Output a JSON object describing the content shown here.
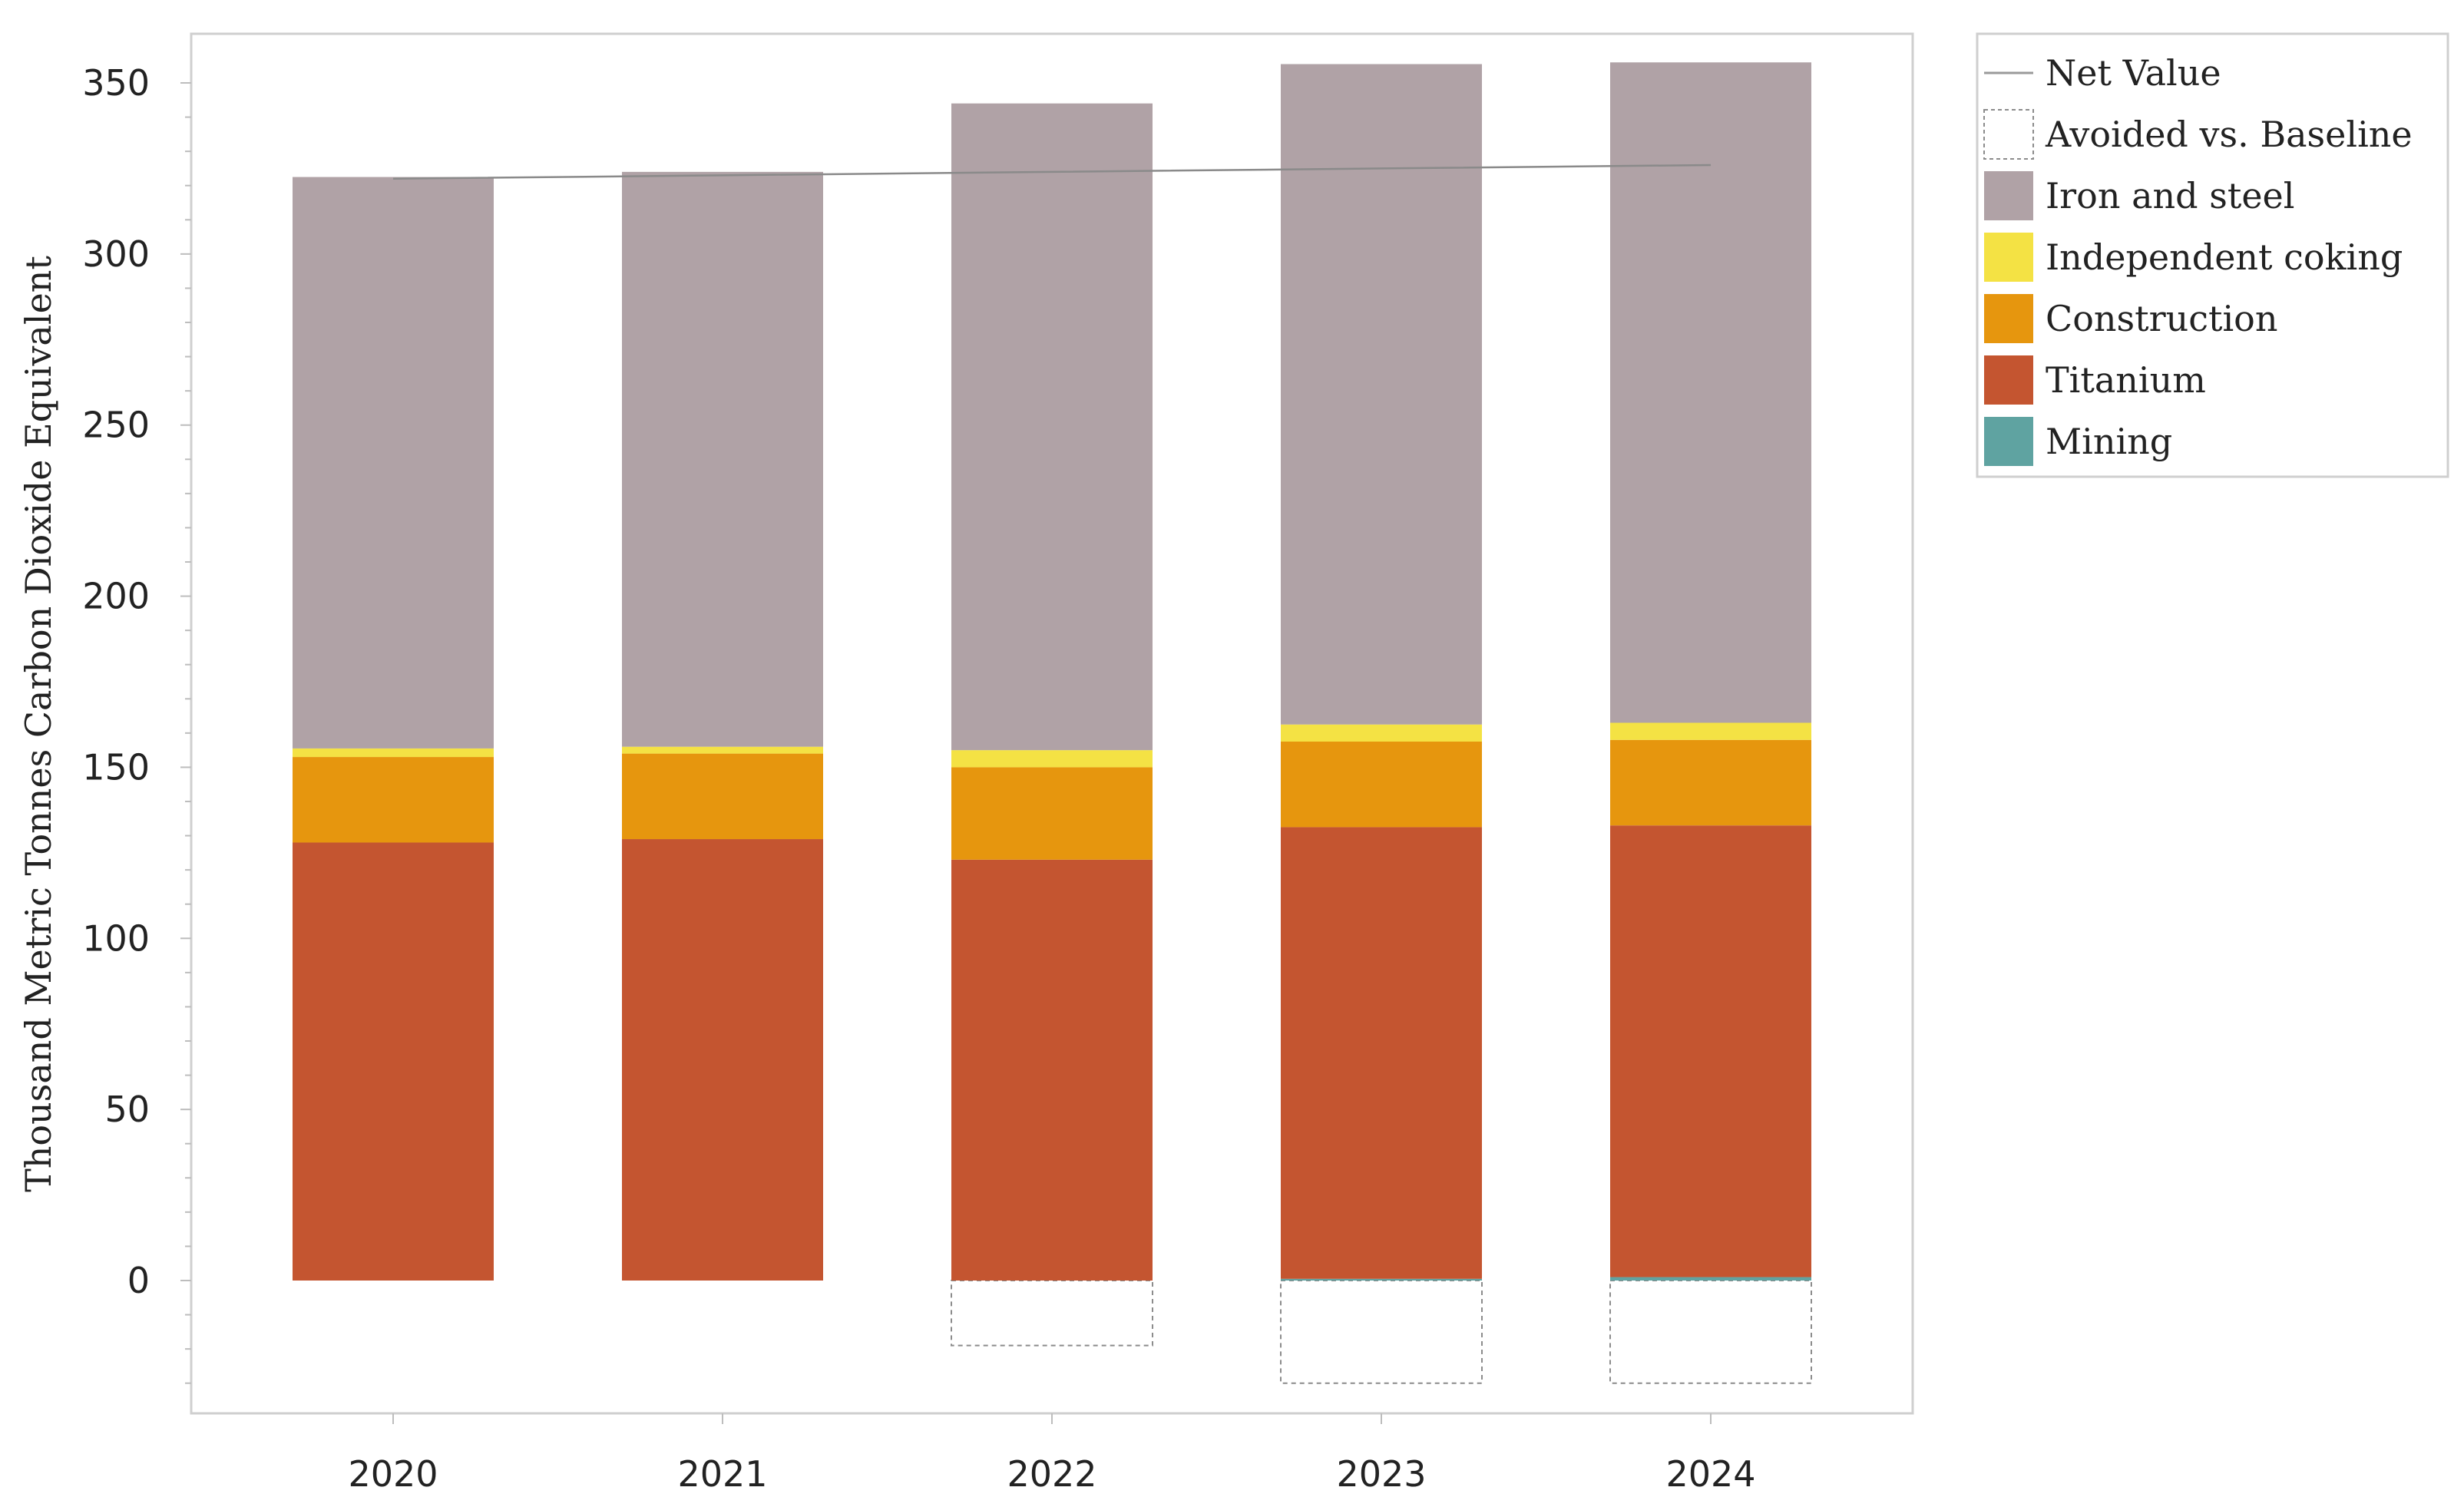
{
  "chart_data": {
    "type": "bar",
    "stacked": true,
    "title": "",
    "xlabel": "",
    "ylabel": "Thousand Metric Tonnes Carbon Dioxide Equivalent",
    "ylim": [
      -38,
      365
    ],
    "yticks": [
      0,
      50,
      100,
      150,
      200,
      250,
      300,
      350
    ],
    "categories": [
      "2020",
      "2021",
      "2022",
      "2023",
      "2024"
    ],
    "series": [
      {
        "name": "Mining",
        "color": "#5fa3a1",
        "values": [
          0,
          0,
          0,
          0.5,
          1
        ]
      },
      {
        "name": "Titanium",
        "color": "#c45530",
        "values": [
          128,
          129,
          123,
          132,
          132
        ]
      },
      {
        "name": "Construction",
        "color": "#e6960e",
        "values": [
          25,
          25,
          27,
          25,
          25
        ]
      },
      {
        "name": "Independent coking",
        "color": "#f4e244",
        "values": [
          2.5,
          2,
          5,
          5,
          5
        ]
      },
      {
        "name": "Iron and steel",
        "color": "#b0a2a6",
        "values": [
          167,
          168,
          189,
          193,
          193
        ]
      }
    ],
    "avoided": {
      "name": "Avoided vs. Baseline",
      "values": [
        0,
        0,
        -19,
        -30,
        -30
      ]
    },
    "net": {
      "name": "Net Value",
      "color": "#8a8a8a",
      "values": [
        322,
        323,
        324,
        325,
        326
      ]
    },
    "legend": {
      "position": "right",
      "entries": [
        {
          "label": "Net Value",
          "kind": "line",
          "color": "#9a9a9a"
        },
        {
          "label": "Avoided vs. Baseline",
          "kind": "dashed-box",
          "color": "#ffffff"
        },
        {
          "label": "Iron and steel",
          "kind": "box",
          "color": "#b0a2a6"
        },
        {
          "label": "Independent coking",
          "kind": "box",
          "color": "#f4e244"
        },
        {
          "label": "Construction",
          "kind": "box",
          "color": "#e6960e"
        },
        {
          "label": "Titanium",
          "kind": "box",
          "color": "#c45530"
        },
        {
          "label": "Mining",
          "kind": "box",
          "color": "#5fa3a1"
        }
      ]
    }
  }
}
